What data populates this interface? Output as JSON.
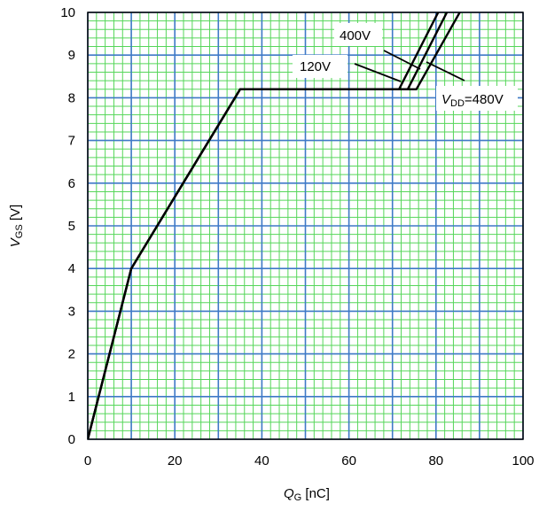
{
  "chart_data": {
    "type": "line",
    "title": "",
    "xlabel": {
      "main": "Q",
      "sub": "G",
      "unit": " [nC]"
    },
    "ylabel": {
      "main": "V",
      "sub": "GS",
      "unit": " [V]"
    },
    "xlim": [
      0,
      100
    ],
    "ylim": [
      0,
      10
    ],
    "x_ticks": [
      0,
      20,
      40,
      60,
      80,
      100
    ],
    "y_ticks": [
      0,
      1,
      2,
      3,
      4,
      5,
      6,
      7,
      8,
      9,
      10
    ],
    "grid": {
      "major": true,
      "minor": true,
      "major_color": "#3f79c7",
      "minor_color": "#56d65a"
    },
    "series": [
      {
        "name": "120V",
        "x": [
          0,
          10,
          35,
          71.5,
          81
        ],
        "y": [
          0,
          4,
          8.2,
          8.2,
          10.1
        ]
      },
      {
        "name": "400V",
        "x": [
          0,
          10,
          35,
          73.5,
          83
        ],
        "y": [
          0,
          4,
          8.2,
          8.2,
          10.1
        ]
      },
      {
        "name": "480V",
        "x": [
          0,
          10,
          35,
          75.5,
          86
        ],
        "y": [
          0,
          4,
          8.2,
          8.2,
          10.1
        ]
      }
    ],
    "annotations": {
      "label_400": "400V",
      "label_120": "120V",
      "label_480_main": "V",
      "label_480_sub": "DD",
      "label_480_val": "=480V"
    }
  }
}
